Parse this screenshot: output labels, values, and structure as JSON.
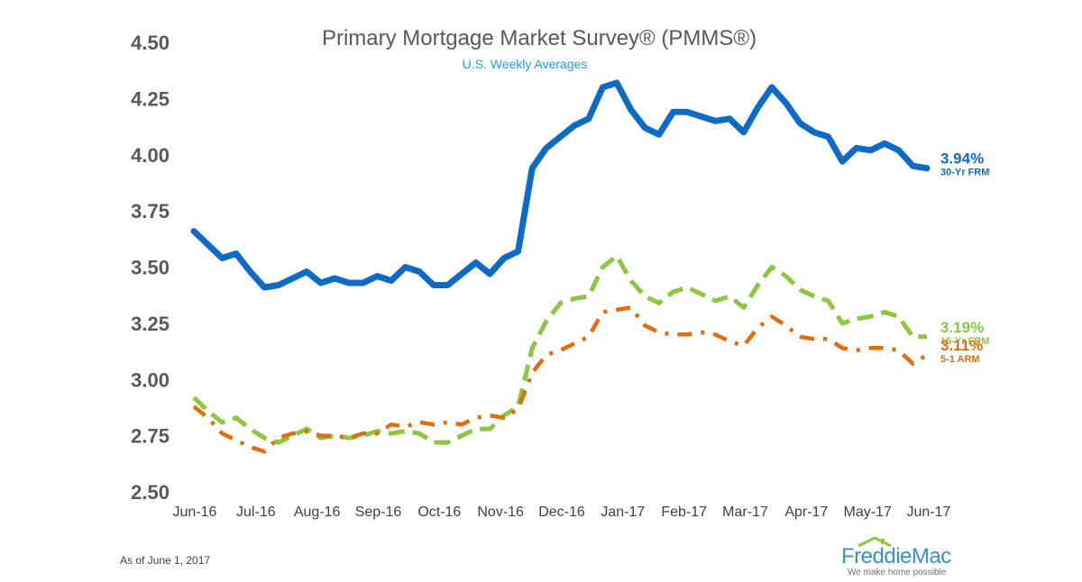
{
  "colors": {
    "frm30": "#0d6bc6",
    "frm15": "#8dc63f",
    "arm51": "#e46c0a",
    "axis_text": "#595959",
    "subtitle": "#1fa2d6"
  },
  "footnote": "As of June 1, 2017",
  "logo": {
    "name": "FreddieMac",
    "tagline": "We make home possible",
    "icon": "house-roof-icon"
  },
  "chart_data": {
    "type": "line",
    "title": "Primary Mortgage Market Survey® (PMMS®)",
    "subtitle": "U.S. Weekly Averages",
    "xlabel": "",
    "ylabel": "",
    "ylim": [
      2.5,
      4.5
    ],
    "yticks": [
      "4.50",
      "4.25",
      "4.00",
      "3.75",
      "3.50",
      "3.25",
      "3.00",
      "2.75",
      "2.50"
    ],
    "xticks": [
      "Jun-16",
      "Jul-16",
      "Aug-16",
      "Sep-16",
      "Oct-16",
      "Nov-16",
      "Dec-16",
      "Jan-17",
      "Feb-17",
      "Mar-17",
      "Apr-17",
      "May-17",
      "Jun-17"
    ],
    "grid": false,
    "legend": "end-of-line labels",
    "series": [
      {
        "key": "frm30",
        "name": "30-Yr FRM",
        "end_label": "3.94%",
        "style": "solid",
        "values": [
          3.66,
          3.6,
          3.54,
          3.56,
          3.48,
          3.41,
          3.42,
          3.45,
          3.48,
          3.43,
          3.45,
          3.43,
          3.43,
          3.46,
          3.44,
          3.5,
          3.48,
          3.42,
          3.42,
          3.47,
          3.52,
          3.47,
          3.54,
          3.57,
          3.94,
          4.03,
          4.08,
          4.13,
          4.16,
          4.3,
          4.32,
          4.2,
          4.12,
          4.09,
          4.19,
          4.19,
          4.17,
          4.15,
          4.16,
          4.1,
          4.21,
          4.3,
          4.23,
          4.14,
          4.1,
          4.08,
          3.97,
          4.03,
          4.02,
          4.05,
          4.02,
          3.95,
          3.94
        ]
      },
      {
        "key": "frm15",
        "name": "15-Yr FRM",
        "end_label": "3.19%",
        "style": "dashed",
        "values": [
          2.92,
          2.86,
          2.81,
          2.83,
          2.78,
          2.74,
          2.72,
          2.75,
          2.78,
          2.74,
          2.75,
          2.74,
          2.75,
          2.77,
          2.76,
          2.77,
          2.76,
          2.72,
          2.72,
          2.75,
          2.78,
          2.78,
          2.84,
          2.88,
          3.14,
          3.26,
          3.34,
          3.36,
          3.37,
          3.5,
          3.55,
          3.44,
          3.37,
          3.34,
          3.39,
          3.41,
          3.38,
          3.35,
          3.37,
          3.32,
          3.42,
          3.5,
          3.46,
          3.4,
          3.37,
          3.35,
          3.25,
          3.27,
          3.28,
          3.3,
          3.28,
          3.19,
          3.19
        ]
      },
      {
        "key": "arm51",
        "name": "5-1 ARM",
        "end_label": "3.11%",
        "style": "dashdot",
        "values": [
          2.88,
          2.83,
          2.76,
          2.73,
          2.7,
          2.68,
          2.74,
          2.76,
          2.77,
          2.75,
          2.75,
          2.74,
          2.76,
          2.76,
          2.8,
          2.79,
          2.81,
          2.8,
          2.81,
          2.8,
          2.83,
          2.84,
          2.83,
          2.87,
          3.03,
          3.11,
          3.13,
          3.16,
          3.19,
          3.3,
          3.31,
          3.32,
          3.24,
          3.21,
          3.2,
          3.2,
          3.21,
          3.2,
          3.17,
          3.15,
          3.23,
          3.28,
          3.24,
          3.19,
          3.18,
          3.18,
          3.14,
          3.13,
          3.14,
          3.14,
          3.13,
          3.07,
          3.11
        ]
      }
    ]
  }
}
